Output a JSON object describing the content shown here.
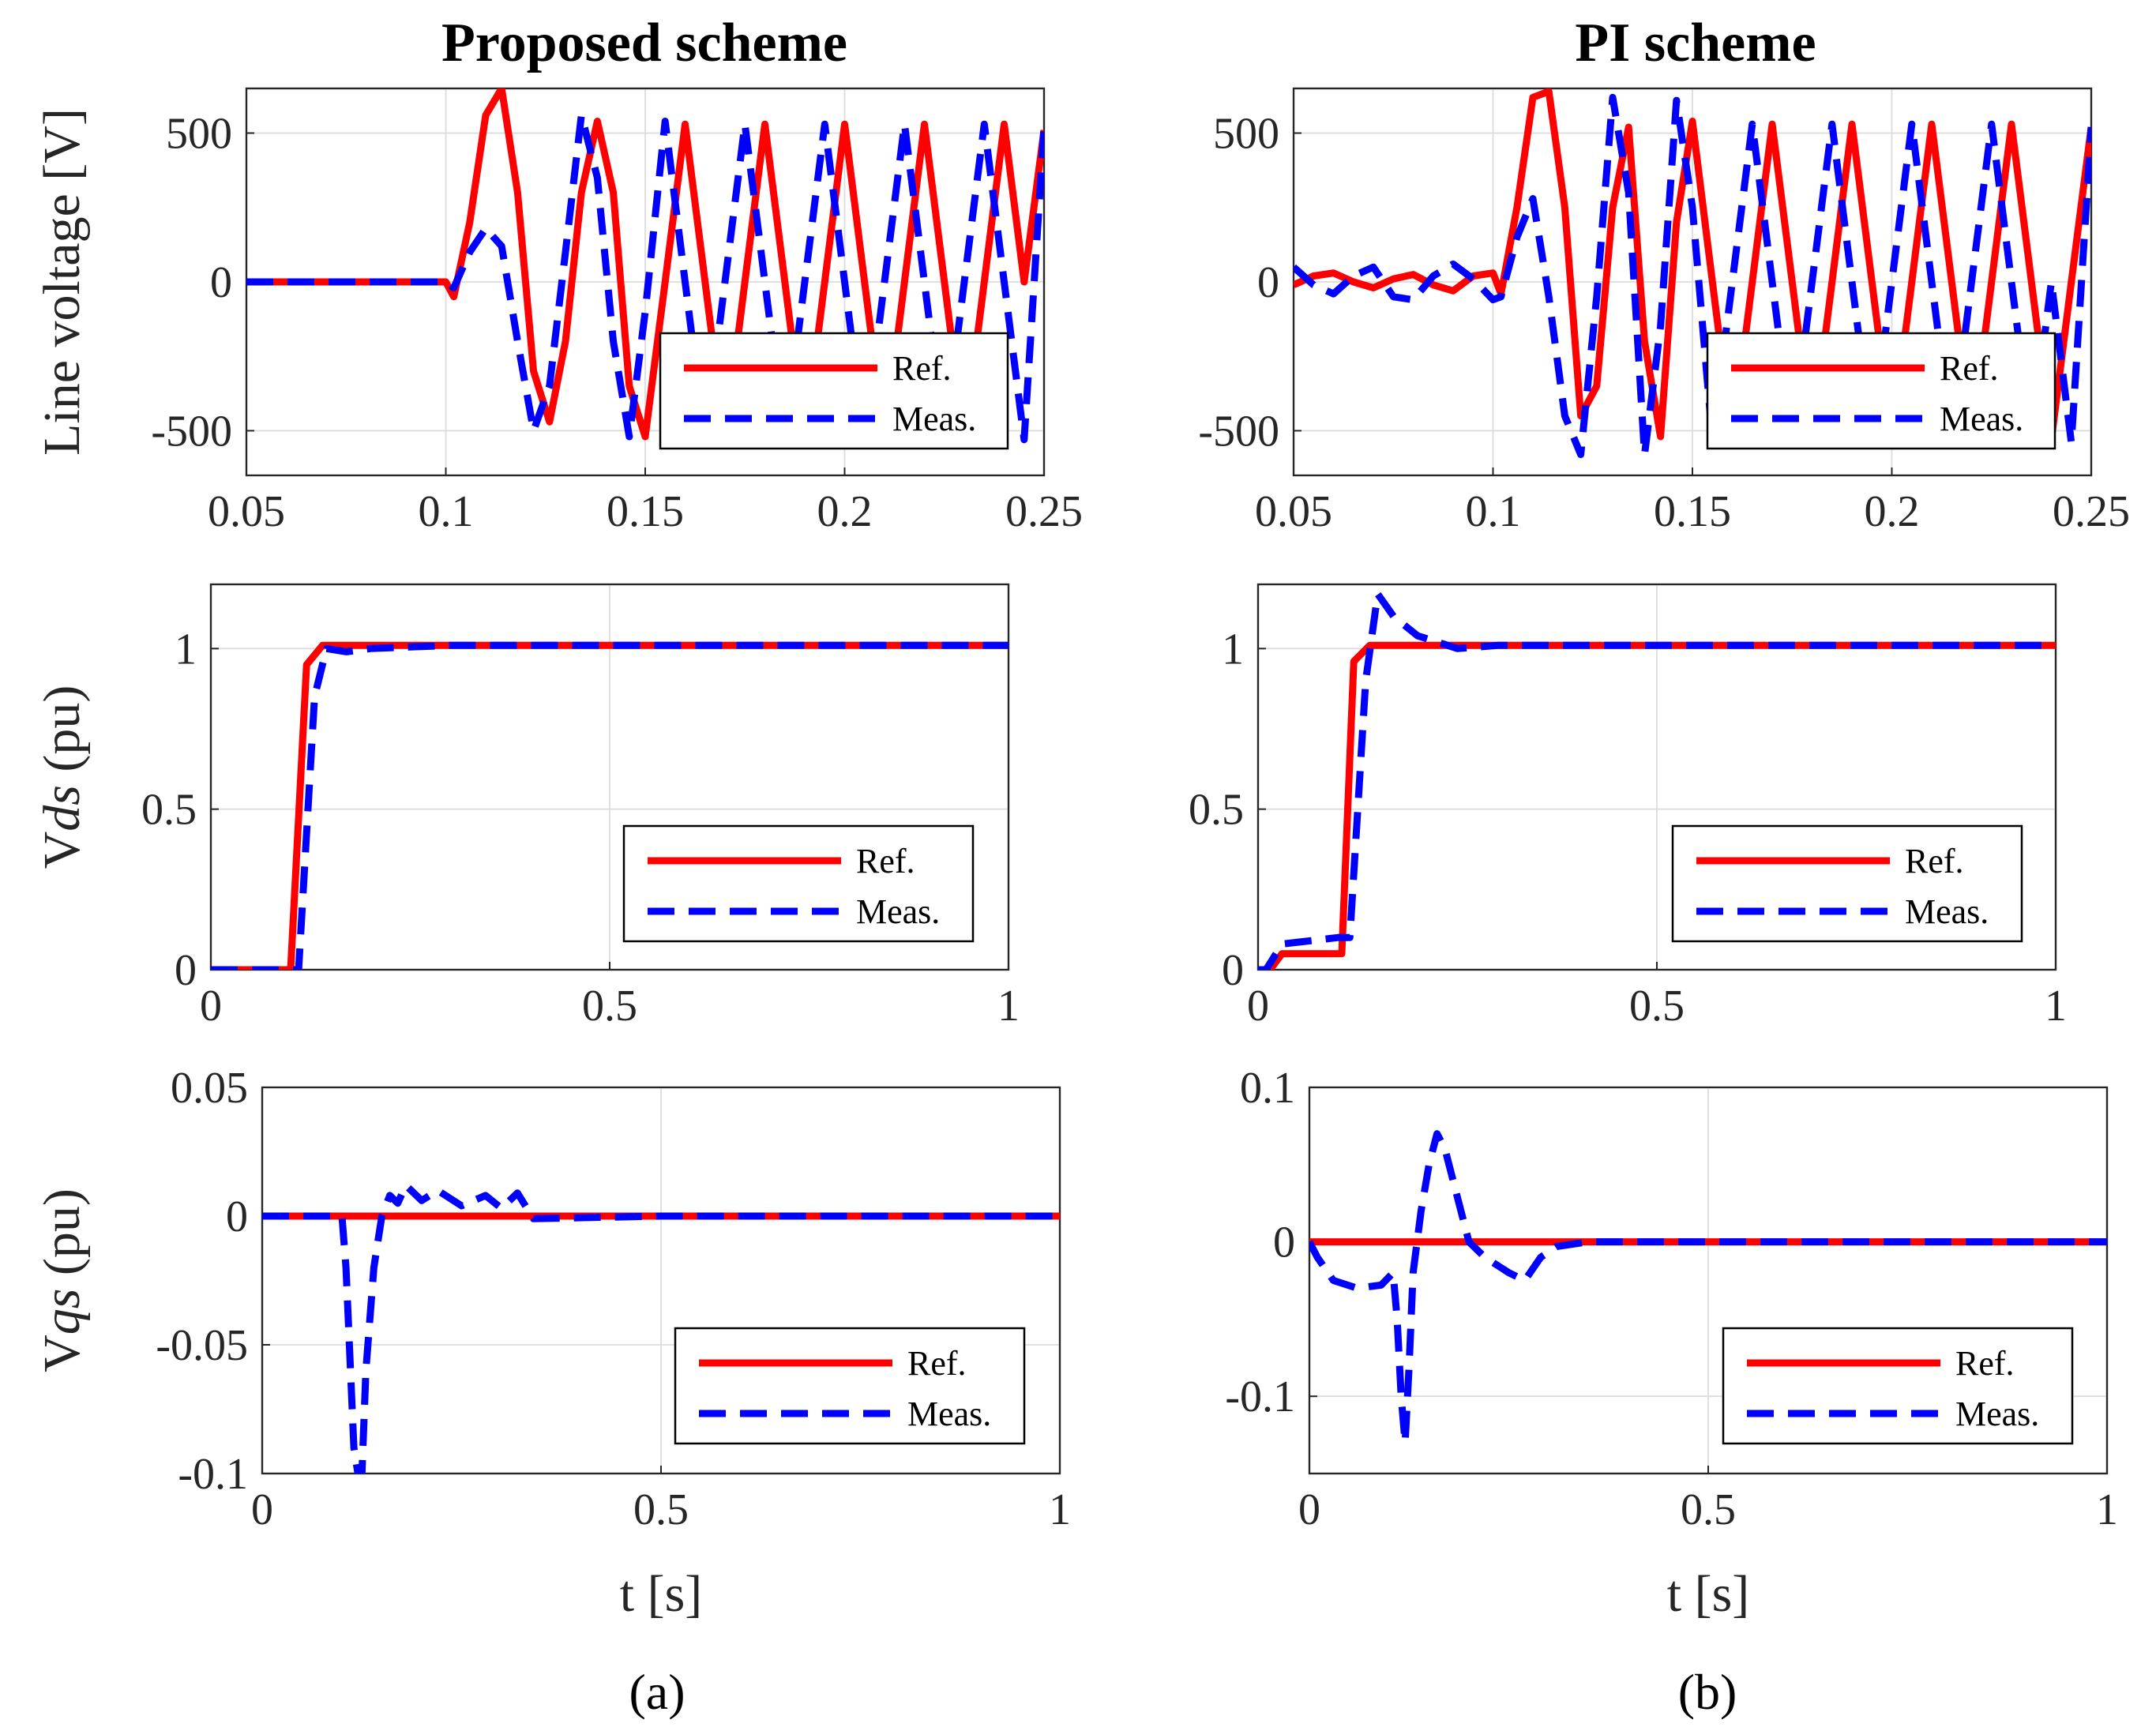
{
  "colors": {
    "ref": "#ff0000",
    "meas": "#0000ff",
    "grid": "#dcdcdc",
    "axis": "#262626"
  },
  "columns": [
    {
      "title": "Proposed scheme",
      "sublabel": "(a)"
    },
    {
      "title": "PI scheme",
      "sublabel": "(b)"
    }
  ],
  "chart_data": [
    {
      "type": "line",
      "title": "Proposed scheme",
      "ylabel": "Line voltage [V]",
      "xlabel": "",
      "xlim": [
        0.05,
        0.25
      ],
      "ylim": [
        -650,
        650
      ],
      "xticks": [
        0.05,
        0.1,
        0.15,
        0.2,
        0.25
      ],
      "xticklabels": [
        "0.05",
        "0.1",
        "0.15",
        "0.2",
        "0.25"
      ],
      "yticks": [
        -500,
        0,
        500
      ],
      "yticklabels": [
        "-500",
        "0",
        "500"
      ],
      "grid": true,
      "legend": {
        "position": "bottom-right",
        "entries": [
          "Ref.",
          "Meas."
        ]
      },
      "series": [
        {
          "name": "Ref.",
          "x": [
            0.05,
            0.1,
            0.102,
            0.106,
            0.11,
            0.114,
            0.118,
            0.122,
            0.126,
            0.13,
            0.134,
            0.138,
            0.142,
            0.146,
            0.15,
            0.155,
            0.16,
            0.165,
            0.17,
            0.175,
            0.18,
            0.185,
            0.19,
            0.195,
            0.2,
            0.205,
            0.21,
            0.215,
            0.22,
            0.225,
            0.23,
            0.235,
            0.24,
            0.245,
            0.25
          ],
          "y": [
            0,
            0,
            -50,
            200,
            560,
            650,
            300,
            -300,
            -470,
            -200,
            300,
            540,
            300,
            -350,
            -520,
            0,
            530,
            0,
            -530,
            0,
            530,
            0,
            -530,
            0,
            530,
            0,
            -530,
            0,
            530,
            0,
            -530,
            0,
            530,
            0,
            510
          ]
        },
        {
          "name": "Meas.",
          "x": [
            0.05,
            0.1,
            0.102,
            0.106,
            0.11,
            0.114,
            0.118,
            0.122,
            0.126,
            0.13,
            0.134,
            0.138,
            0.142,
            0.146,
            0.15,
            0.155,
            0.16,
            0.165,
            0.17,
            0.175,
            0.18,
            0.185,
            0.19,
            0.195,
            0.2,
            0.205,
            0.21,
            0.215,
            0.22,
            0.225,
            0.23,
            0.235,
            0.24,
            0.245,
            0.25
          ],
          "y": [
            0,
            0,
            -20,
            100,
            180,
            120,
            -200,
            -500,
            -350,
            100,
            560,
            350,
            -200,
            -520,
            -100,
            540,
            0,
            -530,
            0,
            530,
            0,
            -530,
            0,
            530,
            0,
            -530,
            0,
            530,
            0,
            -530,
            0,
            530,
            0,
            -530,
            520
          ]
        }
      ]
    },
    {
      "type": "line",
      "title": "PI scheme",
      "ylabel": "",
      "xlabel": "",
      "xlim": [
        0.05,
        0.25
      ],
      "ylim": [
        -650,
        650
      ],
      "xticks": [
        0.05,
        0.1,
        0.15,
        0.2,
        0.25
      ],
      "xticklabels": [
        "0.05",
        "0.1",
        "0.15",
        "0.2",
        "0.25"
      ],
      "yticks": [
        -500,
        0,
        500
      ],
      "yticklabels": [
        "-500",
        "0",
        "500"
      ],
      "grid": true,
      "legend": {
        "position": "bottom-right",
        "entries": [
          "Ref.",
          "Meas."
        ]
      },
      "series": [
        {
          "name": "Ref.",
          "x": [
            0.05,
            0.055,
            0.06,
            0.065,
            0.07,
            0.075,
            0.08,
            0.085,
            0.09,
            0.095,
            0.1,
            0.102,
            0.106,
            0.11,
            0.114,
            0.118,
            0.122,
            0.126,
            0.13,
            0.134,
            0.138,
            0.142,
            0.146,
            0.15,
            0.155,
            0.16,
            0.165,
            0.17,
            0.175,
            0.18,
            0.185,
            0.19,
            0.195,
            0.2,
            0.205,
            0.21,
            0.215,
            0.22,
            0.225,
            0.23,
            0.235,
            0.24,
            0.245,
            0.25
          ],
          "y": [
            -10,
            20,
            30,
            0,
            -20,
            10,
            25,
            -10,
            -30,
            20,
            30,
            -40,
            250,
            620,
            640,
            250,
            -450,
            -350,
            250,
            520,
            -200,
            -520,
            200,
            540,
            0,
            -530,
            0,
            530,
            0,
            -530,
            0,
            530,
            0,
            -530,
            0,
            530,
            0,
            -530,
            0,
            530,
            0,
            -530,
            0,
            520
          ]
        },
        {
          "name": "Meas.",
          "x": [
            0.05,
            0.055,
            0.06,
            0.065,
            0.07,
            0.075,
            0.08,
            0.085,
            0.09,
            0.095,
            0.1,
            0.102,
            0.106,
            0.11,
            0.114,
            0.118,
            0.122,
            0.126,
            0.13,
            0.134,
            0.138,
            0.142,
            0.146,
            0.15,
            0.155,
            0.16,
            0.165,
            0.17,
            0.175,
            0.18,
            0.185,
            0.19,
            0.195,
            0.2,
            0.205,
            0.21,
            0.215,
            0.22,
            0.225,
            0.23,
            0.235,
            0.24,
            0.245,
            0.25
          ],
          "y": [
            50,
            -10,
            -40,
            20,
            50,
            -50,
            -60,
            20,
            60,
            10,
            -60,
            -50,
            150,
            280,
            -50,
            -450,
            -580,
            -50,
            620,
            300,
            -580,
            -150,
            610,
            250,
            -530,
            0,
            530,
            0,
            -530,
            0,
            530,
            0,
            -530,
            0,
            530,
            0,
            -530,
            0,
            530,
            0,
            -530,
            0,
            -540,
            520
          ]
        }
      ]
    },
    {
      "type": "line",
      "ylabel": "Vds (pu)",
      "ylabel_prefix": "V",
      "ylabel_italic": "ds",
      "ylabel_suffix": " (pu)",
      "xlabel": "",
      "xlim": [
        0,
        1
      ],
      "ylim": [
        0,
        1.2
      ],
      "xticks": [
        0,
        0.5,
        1
      ],
      "xticklabels": [
        "0",
        "0.5",
        "1"
      ],
      "yticks": [
        0,
        0.5,
        1
      ],
      "yticklabels": [
        "0",
        "0.5",
        "1"
      ],
      "grid": true,
      "legend": {
        "position": "bottom-right",
        "entries": [
          "Ref.",
          "Meas."
        ]
      },
      "series": [
        {
          "name": "Ref.",
          "x": [
            0,
            0.1,
            0.12,
            0.14,
            0.3,
            1
          ],
          "y": [
            0,
            0,
            0.95,
            1.01,
            1.01,
            1.01
          ]
        },
        {
          "name": "Meas.",
          "x": [
            0,
            0.11,
            0.13,
            0.145,
            0.17,
            0.2,
            0.3,
            1
          ],
          "y": [
            0,
            0,
            0.85,
            1.0,
            0.99,
            1.0,
            1.01,
            1.01
          ]
        }
      ]
    },
    {
      "type": "line",
      "ylabel": "",
      "xlabel": "",
      "xlim": [
        0,
        1
      ],
      "ylim": [
        0,
        1.2
      ],
      "xticks": [
        0,
        0.5,
        1
      ],
      "xticklabels": [
        "0",
        "0.5",
        "1"
      ],
      "yticks": [
        0,
        0.5,
        1
      ],
      "yticklabels": [
        "0",
        "0.5",
        "1"
      ],
      "grid": true,
      "legend": {
        "position": "bottom-right",
        "entries": [
          "Ref.",
          "Meas."
        ]
      },
      "series": [
        {
          "name": "Ref.",
          "x": [
            0,
            0.015,
            0.03,
            0.1,
            0.105,
            0.12,
            0.14,
            1
          ],
          "y": [
            0,
            0,
            0.05,
            0.05,
            0.05,
            0.96,
            1.01,
            1.01
          ]
        },
        {
          "name": "Meas.",
          "x": [
            0,
            0.01,
            0.03,
            0.1,
            0.115,
            0.135,
            0.15,
            0.17,
            0.2,
            0.25,
            0.3,
            1
          ],
          "y": [
            0,
            0,
            0.08,
            0.1,
            0.1,
            0.9,
            1.17,
            1.1,
            1.04,
            1.0,
            1.01,
            1.01
          ]
        }
      ]
    },
    {
      "type": "line",
      "ylabel": "Vqs (pu)",
      "ylabel_prefix": "V",
      "ylabel_italic": "qs",
      "ylabel_suffix": " (pu)",
      "xlabel": "t  [s]",
      "xlim": [
        0,
        1
      ],
      "ylim": [
        -0.1,
        0.05
      ],
      "xticks": [
        0,
        0.5,
        1
      ],
      "xticklabels": [
        "0",
        "0.5",
        "1"
      ],
      "yticks": [
        -0.1,
        -0.05,
        0,
        0.05
      ],
      "yticklabels": [
        "-0.1",
        "-0.05",
        "0",
        "0.05"
      ],
      "grid": true,
      "legend": {
        "position": "bottom-right",
        "entries": [
          "Ref.",
          "Meas."
        ]
      },
      "series": [
        {
          "name": "Ref.",
          "x": [
            0,
            1
          ],
          "y": [
            0,
            0
          ]
        },
        {
          "name": "Meas.",
          "x": [
            0,
            0.1,
            0.105,
            0.115,
            0.12,
            0.125,
            0.13,
            0.14,
            0.15,
            0.16,
            0.17,
            0.18,
            0.2,
            0.22,
            0.25,
            0.28,
            0.3,
            0.32,
            0.34,
            0.5,
            1
          ],
          "y": [
            0,
            0,
            -0.02,
            -0.09,
            -0.1,
            -0.1,
            -0.06,
            -0.02,
            0.0,
            0.008,
            0.005,
            0.012,
            0.006,
            0.01,
            0.004,
            0.008,
            0.003,
            0.009,
            -0.001,
            0,
            0
          ]
        }
      ]
    },
    {
      "type": "line",
      "ylabel": "",
      "xlabel": "t  [s]",
      "xlim": [
        0,
        1
      ],
      "ylim": [
        -0.15,
        0.1
      ],
      "xticks": [
        0,
        0.5,
        1
      ],
      "xticklabels": [
        "0",
        "0.5",
        "1"
      ],
      "yticks": [
        -0.1,
        0,
        0.1
      ],
      "yticklabels": [
        "-0.1",
        "0",
        "0.1"
      ],
      "grid": true,
      "legend": {
        "position": "bottom-right",
        "entries": [
          "Ref.",
          "Meas."
        ]
      },
      "series": [
        {
          "name": "Ref.",
          "x": [
            0,
            1
          ],
          "y": [
            0,
            0
          ]
        },
        {
          "name": "Meas.",
          "x": [
            0,
            0.01,
            0.03,
            0.06,
            0.09,
            0.105,
            0.11,
            0.115,
            0.12,
            0.125,
            0.13,
            0.14,
            0.15,
            0.16,
            0.17,
            0.19,
            0.2,
            0.22,
            0.25,
            0.27,
            0.29,
            0.31,
            0.35,
            1
          ],
          "y": [
            0,
            -0.01,
            -0.025,
            -0.03,
            -0.028,
            -0.02,
            -0.05,
            -0.1,
            -0.13,
            -0.08,
            -0.02,
            0.02,
            0.05,
            0.07,
            0.06,
            0.02,
            0.0,
            -0.01,
            -0.02,
            -0.025,
            -0.01,
            -0.003,
            0,
            0
          ]
        }
      ]
    }
  ]
}
